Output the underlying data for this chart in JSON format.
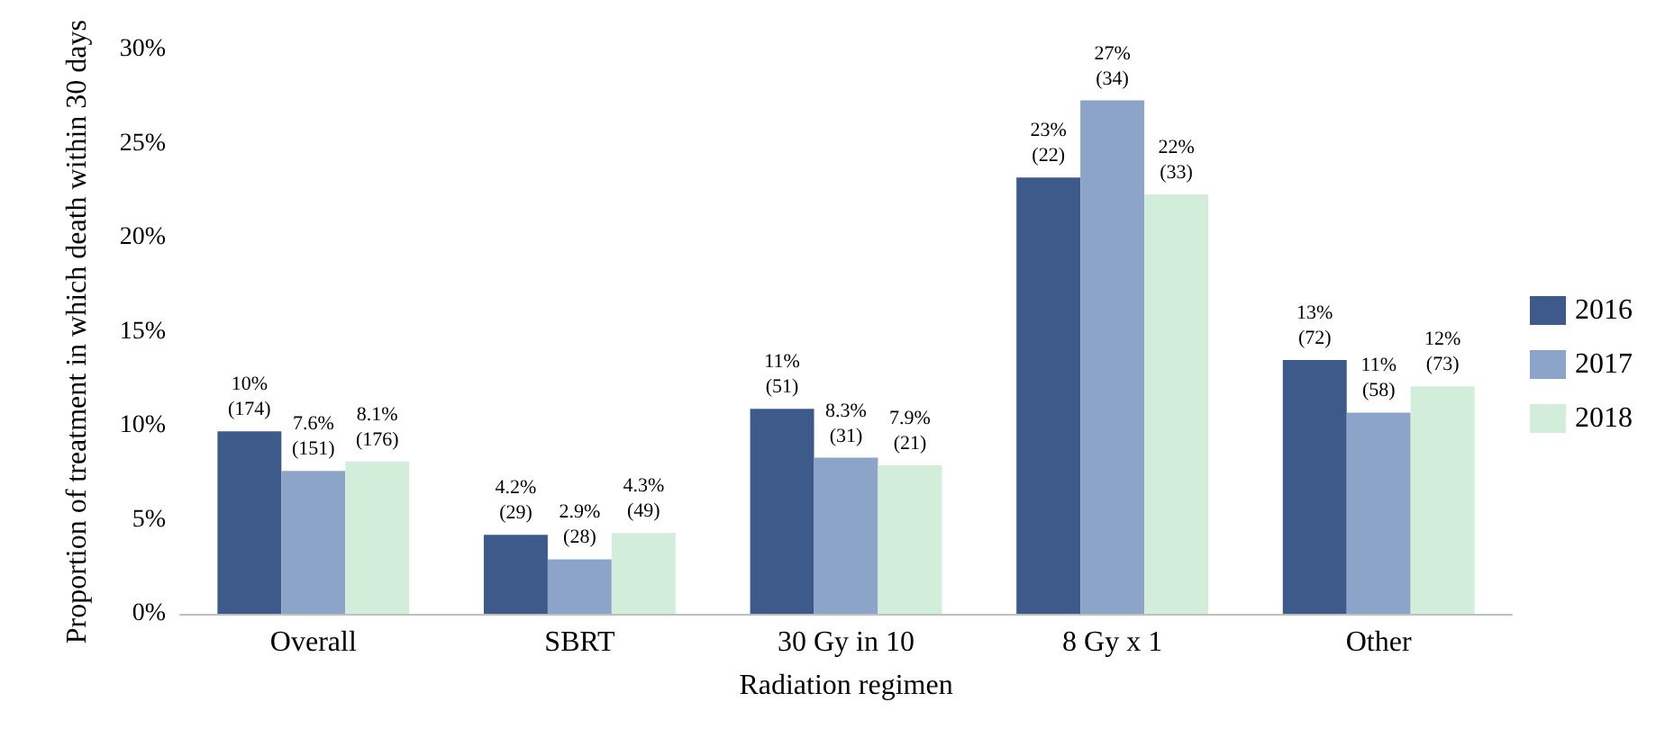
{
  "chart_data": {
    "type": "bar",
    "xlabel": "Radiation regimen",
    "ylabel": "Proportion of treatment in which death within 30 days",
    "categories": [
      "Overall",
      "SBRT",
      "30 Gy in 10",
      "8 Gy x 1",
      "Other"
    ],
    "series": [
      {
        "name": "2016",
        "color": "#3d5a8a",
        "values": [
          9.7,
          4.2,
          10.9,
          23.2,
          13.5
        ],
        "value_labels": [
          "10%\n(174)",
          "4.2%\n(29)",
          "11%\n(51)",
          "23%\n(22)",
          "13%\n(72)"
        ]
      },
      {
        "name": "2017",
        "color": "#8ca4c7",
        "values": [
          7.6,
          2.9,
          8.3,
          27.3,
          10.7
        ],
        "value_labels": [
          "7.6%\n(151)",
          "2.9%\n(28)",
          "8.3%\n(31)",
          "27%\n(34)",
          "11%\n(58)"
        ]
      },
      {
        "name": "2018",
        "color": "#d3eddb",
        "values": [
          8.1,
          4.3,
          7.9,
          22.3,
          12.1
        ],
        "value_labels": [
          "8.1%\n(176)",
          "4.3%\n(49)",
          "7.9%\n(21)",
          "22%\n(33)",
          "12%\n(73)"
        ]
      }
    ],
    "ylim": [
      0,
      30
    ],
    "yticks": [
      {
        "value": 0,
        "label": "0%"
      },
      {
        "value": 5,
        "label": "5%"
      },
      {
        "value": 10,
        "label": "10%"
      },
      {
        "value": 15,
        "label": "15%"
      },
      {
        "value": 20,
        "label": "20%"
      },
      {
        "value": 25,
        "label": "25%"
      },
      {
        "value": 30,
        "label": "30%"
      }
    ],
    "grid": false,
    "legend": "right"
  }
}
